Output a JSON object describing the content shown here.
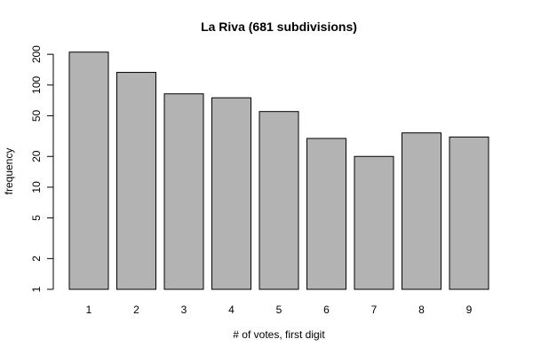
{
  "chart_data": {
    "type": "bar",
    "title": "La Riva (681 subdivisions)",
    "xlabel": "# of votes, first digit",
    "ylabel": "frequency",
    "yscale": "log",
    "ylim": [
      1,
      250
    ],
    "yticks": [
      1,
      2,
      5,
      10,
      20,
      50,
      100,
      200
    ],
    "categories": [
      "1",
      "2",
      "3",
      "4",
      "5",
      "6",
      "7",
      "8",
      "9"
    ],
    "values": [
      210,
      133,
      82,
      75,
      55,
      30,
      20,
      34,
      31
    ],
    "bar_color": "#b3b3b3",
    "grid": false,
    "legend": "none"
  }
}
